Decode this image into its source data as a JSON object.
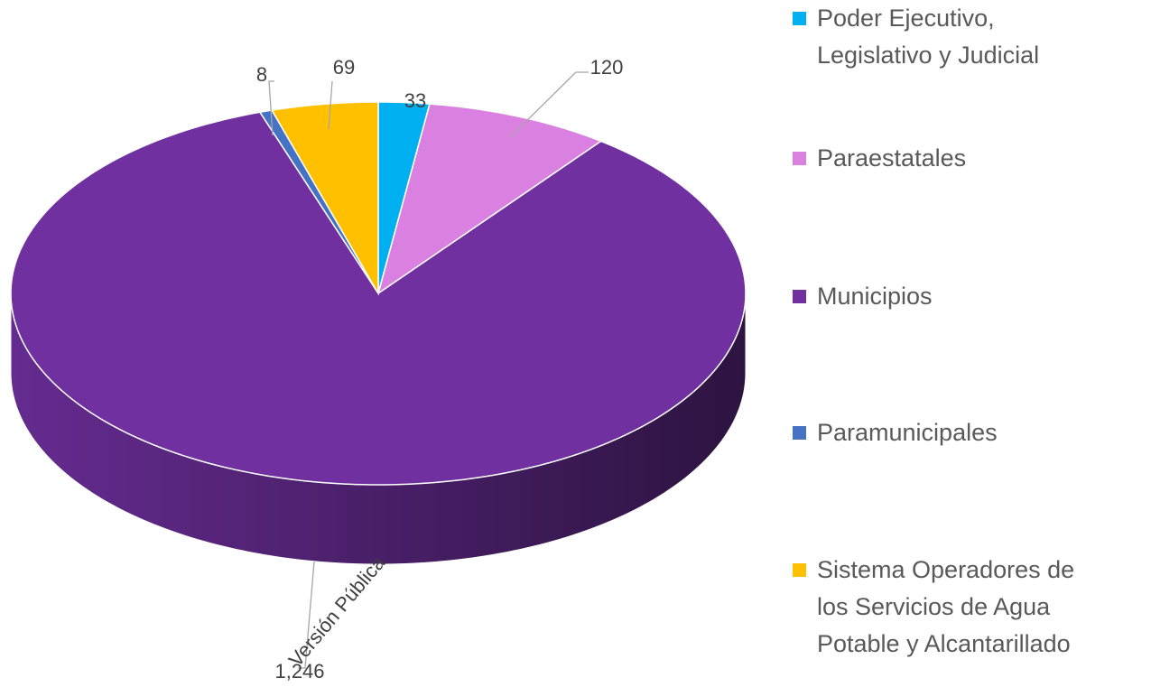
{
  "chart_data": {
    "type": "pie3d",
    "categories": [
      "Poder Ejecutivo, Legislativo y Judicial",
      "Paraestatales",
      "Municipios",
      "Paramunicipales",
      "Sistema Operadores de los Servicios de Agua Potable y Alcantarillado"
    ],
    "values": [
      33,
      120,
      1246,
      8,
      69
    ],
    "value_labels": [
      "33",
      "120",
      "1,246",
      "8",
      "69"
    ],
    "colors": [
      "#00b0f0",
      "#da80e0",
      "#7030a0",
      "#4472c4",
      "#ffc000"
    ],
    "legend": "right",
    "watermark": "Versión Pública"
  }
}
